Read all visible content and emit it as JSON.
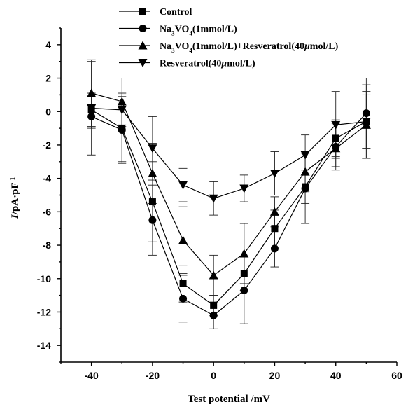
{
  "chart_data": {
    "type": "line",
    "title": "",
    "xlabel": "Test potential /mV",
    "ylabel": "I/pA·pF⁻¹",
    "xlim": [
      -50,
      60
    ],
    "ylim": [
      -15,
      5
    ],
    "x_ticks": [
      -40,
      -20,
      0,
      20,
      40,
      60
    ],
    "y_ticks": [
      4,
      2,
      0,
      -2,
      -4,
      -6,
      -8,
      -10,
      -12,
      -14
    ],
    "legend_position": "top",
    "x": [
      -40,
      -30,
      -20,
      -10,
      0,
      10,
      20,
      30,
      40,
      50
    ],
    "series": [
      {
        "name": "Control",
        "marker": "square",
        "values": [
          0.1,
          -1.0,
          -5.4,
          -10.3,
          -11.6,
          -9.7,
          -7.0,
          -4.5,
          -1.6,
          -0.6
        ],
        "errors": [
          1.0,
          2.0,
          2.4,
          1.1,
          0.6,
          1.0,
          1.1,
          1.0,
          1.1,
          1.6
        ]
      },
      {
        "name": "Na3VO4(1mmol/L)",
        "marker": "circle",
        "values": [
          -0.3,
          -1.1,
          -6.5,
          -11.2,
          -12.2,
          -10.7,
          -8.2,
          -4.6,
          -2.1,
          -0.1
        ],
        "errors": [
          0.7,
          2.0,
          2.1,
          1.4,
          0.8,
          2.0,
          1.1,
          2.1,
          1.4,
          2.1
        ]
      },
      {
        "name": "Na3VO4(1mmol/L)+Resveratrol(40μmol/L)",
        "marker": "triangle-up",
        "values": [
          1.1,
          0.6,
          -3.7,
          -7.7,
          -9.8,
          -8.5,
          -6.0,
          -3.6,
          -2.2,
          -0.8
        ],
        "errors": [
          2.0,
          1.4,
          1.8,
          2.0,
          1.2,
          1.8,
          0.9,
          1.2,
          1.1,
          2.0
        ]
      },
      {
        "name": "Resveratrol(40μmol/L)",
        "marker": "triangle-down",
        "values": [
          0.2,
          0.1,
          -2.2,
          -4.4,
          -5.2,
          -4.6,
          -3.7,
          -2.6,
          -0.8,
          -0.6
        ],
        "errors": [
          2.8,
          1.0,
          1.9,
          1.0,
          1.0,
          0.8,
          1.3,
          1.2,
          2.0,
          2.2
        ]
      }
    ]
  },
  "legend": {
    "entries": [
      {
        "marker": "square",
        "parts": [
          {
            "t": "Control"
          }
        ]
      },
      {
        "marker": "circle",
        "parts": [
          {
            "t": "Na"
          },
          {
            "t": "3",
            "sub": true
          },
          {
            "t": "VO"
          },
          {
            "t": "4",
            "sub": true
          },
          {
            "t": "(1"
          },
          {
            "t": "mmol/L)"
          }
        ]
      },
      {
        "marker": "triangle-up",
        "parts": [
          {
            "t": "Na"
          },
          {
            "t": "3",
            "sub": true
          },
          {
            "t": "VO"
          },
          {
            "t": "4",
            "sub": true
          },
          {
            "t": "(1"
          },
          {
            "t": "mmol/L)+Resveratrol"
          },
          {
            "t": "(40"
          },
          {
            "t": "μ",
            "italic": true
          },
          {
            "t": "mol/L)"
          }
        ]
      },
      {
        "marker": "triangle-down",
        "parts": [
          {
            "t": "Resveratrol"
          },
          {
            "t": "(40"
          },
          {
            "t": "μ",
            "italic": true
          },
          {
            "t": "mol/L)"
          }
        ]
      }
    ]
  },
  "ylabel_parts": [
    {
      "t": "I",
      "italic": true
    },
    {
      "t": "/pA·pF"
    },
    {
      "t": "-1",
      "sup": true
    }
  ]
}
